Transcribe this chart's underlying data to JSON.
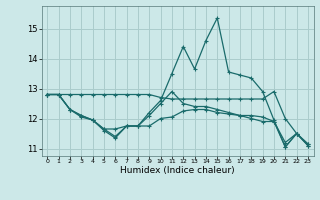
{
  "xlabel": "Humidex (Indice chaleur)",
  "background_color": "#cce8e8",
  "grid_color": "#aacccc",
  "line_color": "#1a6b6b",
  "x": [
    0,
    1,
    2,
    3,
    4,
    5,
    6,
    7,
    8,
    9,
    10,
    11,
    12,
    13,
    14,
    15,
    16,
    17,
    18,
    19,
    20,
    21,
    22,
    23
  ],
  "line1": [
    12.8,
    12.8,
    12.8,
    12.8,
    12.8,
    12.8,
    12.8,
    12.8,
    12.8,
    12.8,
    12.7,
    12.65,
    12.65,
    12.65,
    12.65,
    12.65,
    12.65,
    12.65,
    12.65,
    12.65,
    12.9,
    12.0,
    11.5,
    11.15
  ],
  "line2": [
    12.8,
    12.8,
    12.3,
    12.1,
    11.95,
    11.65,
    11.65,
    11.75,
    11.75,
    11.75,
    12.0,
    12.05,
    12.25,
    12.3,
    12.3,
    12.2,
    12.15,
    12.1,
    12.1,
    12.05,
    11.9,
    11.05,
    11.5,
    11.1
  ],
  "line3": [
    12.8,
    12.8,
    12.3,
    12.1,
    11.95,
    11.65,
    11.4,
    11.75,
    11.75,
    12.2,
    12.6,
    13.5,
    14.4,
    13.65,
    14.6,
    15.35,
    13.55,
    13.45,
    13.35,
    12.9,
    11.95,
    11.05,
    11.5,
    11.15
  ],
  "line4": [
    12.8,
    12.8,
    12.3,
    12.05,
    11.95,
    11.6,
    11.35,
    11.75,
    11.75,
    12.1,
    12.5,
    12.9,
    12.5,
    12.4,
    12.4,
    12.3,
    12.2,
    12.1,
    12.0,
    11.9,
    11.9,
    11.2,
    11.5,
    11.1
  ],
  "ylim": [
    10.75,
    15.75
  ],
  "xlim": [
    -0.5,
    23.5
  ],
  "yticks": [
    11,
    12,
    13,
    14,
    15
  ],
  "xticks": [
    0,
    1,
    2,
    3,
    4,
    5,
    6,
    7,
    8,
    9,
    10,
    11,
    12,
    13,
    14,
    15,
    16,
    17,
    18,
    19,
    20,
    21,
    22,
    23
  ]
}
